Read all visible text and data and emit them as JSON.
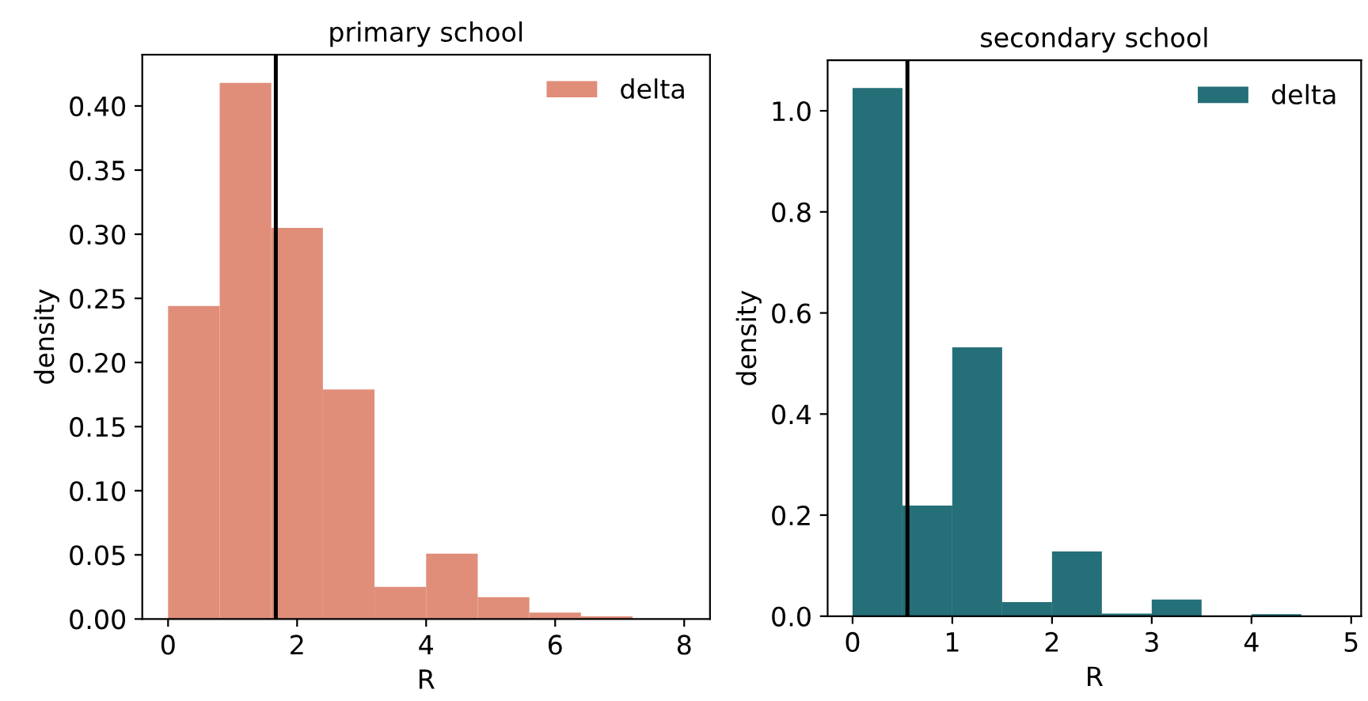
{
  "chart_data": [
    {
      "type": "histogram",
      "title": "primary school",
      "xlabel": "R",
      "ylabel": "density",
      "bins": [
        0,
        0.8,
        1.6,
        2.4,
        3.2,
        4.0,
        4.8,
        5.6,
        6.4,
        7.2
      ],
      "series": [
        {
          "name": "delta",
          "color": "#e08e7a",
          "values": [
            0.244,
            0.418,
            0.305,
            0.179,
            0.025,
            0.051,
            0.017,
            0.005,
            0.002
          ]
        }
      ],
      "xlim": [
        -0.4,
        8.4
      ],
      "ylim": [
        0,
        0.44
      ],
      "xticks": [
        0,
        2,
        4,
        6,
        8
      ],
      "yticks": [
        {
          "value": 0,
          "label": "0.00"
        },
        {
          "value": 0.05,
          "label": "0.05"
        },
        {
          "value": 0.1,
          "label": "0.10"
        },
        {
          "value": 0.15,
          "label": "0.15"
        },
        {
          "value": 0.2,
          "label": "0.20"
        },
        {
          "value": 0.25,
          "label": "0.25"
        },
        {
          "value": 0.3,
          "label": "0.30"
        },
        {
          "value": 0.35,
          "label": "0.35"
        },
        {
          "value": 0.4,
          "label": "0.40"
        }
      ],
      "ref_lines": [
        {
          "axis": "x",
          "value": 1.67,
          "color": "#000000"
        }
      ],
      "legend": "top right",
      "grid": false
    },
    {
      "type": "histogram",
      "title": "secondary school",
      "xlabel": "R",
      "ylabel": "density",
      "bins": [
        0,
        0.5,
        1.0,
        1.5,
        2.0,
        2.5,
        3.0,
        3.5,
        4.0,
        4.5
      ],
      "series": [
        {
          "name": "delta",
          "color": "#256f78",
          "values": [
            1.045,
            0.219,
            0.532,
            0.028,
            0.128,
            0.005,
            0.033,
            0,
            0.004
          ]
        }
      ],
      "xlim": [
        -0.25,
        5.1
      ],
      "ylim": [
        0,
        1.1
      ],
      "xticks": [
        0,
        1,
        2,
        3,
        4,
        5
      ],
      "yticks": [
        {
          "value": 0,
          "label": "0.0"
        },
        0.2,
        0.4,
        0.6,
        0.8,
        {
          "value": 1,
          "label": "1.0"
        }
      ],
      "ref_lines": [
        {
          "axis": "x",
          "value": 0.55,
          "color": "#000000"
        }
      ],
      "legend": "top right",
      "grid": false
    }
  ]
}
